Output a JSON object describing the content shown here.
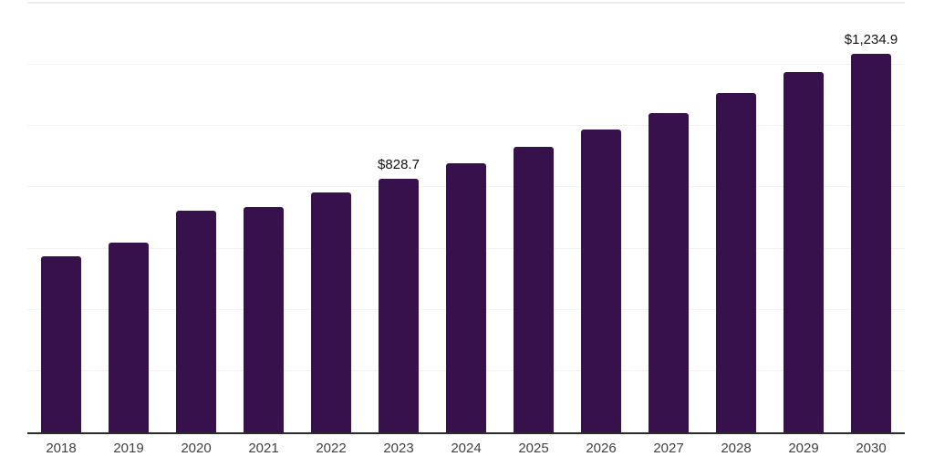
{
  "page": {
    "background": "#ffffff"
  },
  "chart_data": {
    "type": "bar",
    "title": "",
    "xlabel": "",
    "ylabel": "",
    "categories": [
      "2018",
      "2019",
      "2020",
      "2021",
      "2022",
      "2023",
      "2024",
      "2025",
      "2026",
      "2027",
      "2028",
      "2029",
      "2030"
    ],
    "values": [
      576,
      620,
      725,
      737,
      784,
      828.7,
      880,
      933,
      990,
      1043,
      1109,
      1177,
      1234.9
    ],
    "data_labels": [
      "",
      "",
      "",
      "",
      "",
      "$828.7",
      "",
      "",
      "",
      "",
      "",
      "",
      "$1,234.9"
    ],
    "ylim": [
      0,
      1400
    ],
    "gridline_step": 200,
    "grid": "horizontal-only",
    "legend": "none",
    "y_axis_ticks_visible": false,
    "bar_color": "#36114B",
    "axis_line_color": "#2B2B2B",
    "gridline_color": "#F2F2F2",
    "top_border_color": "#EDEDF0",
    "tick_label_color": "#404040",
    "data_label_color": "#111111"
  }
}
